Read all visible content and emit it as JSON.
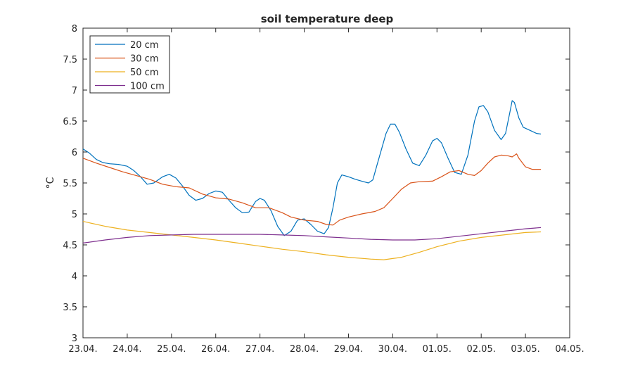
{
  "chart_data": {
    "type": "line",
    "title": "soil temperature deep",
    "xlabel": "",
    "ylabel": "°C",
    "x_ticks": [
      "23.04.",
      "24.04.",
      "25.04.",
      "26.04.",
      "27.04.",
      "28.04.",
      "29.04.",
      "30.04.",
      "01.05.",
      "02.05.",
      "03.05.",
      "04.05."
    ],
    "xlim": [
      0,
      11
    ],
    "ylim": [
      3,
      8
    ],
    "y_ticks": [
      "3",
      "3.5",
      "4",
      "4.5",
      "5",
      "5.5",
      "6",
      "6.5",
      "7",
      "7.5",
      "8"
    ],
    "grid": false,
    "legend_position": "top-left",
    "series": [
      {
        "name": "20 cm",
        "color": "#0072bd",
        "points": [
          [
            0,
            6.05
          ],
          [
            0.15,
            5.98
          ],
          [
            0.3,
            5.88
          ],
          [
            0.45,
            5.83
          ],
          [
            0.6,
            5.81
          ],
          [
            0.8,
            5.8
          ],
          [
            1.0,
            5.77
          ],
          [
            1.15,
            5.7
          ],
          [
            1.3,
            5.6
          ],
          [
            1.45,
            5.48
          ],
          [
            1.6,
            5.5
          ],
          [
            1.8,
            5.6
          ],
          [
            1.95,
            5.64
          ],
          [
            2.1,
            5.58
          ],
          [
            2.25,
            5.45
          ],
          [
            2.4,
            5.3
          ],
          [
            2.55,
            5.22
          ],
          [
            2.7,
            5.25
          ],
          [
            2.85,
            5.33
          ],
          [
            3.0,
            5.37
          ],
          [
            3.15,
            5.35
          ],
          [
            3.3,
            5.22
          ],
          [
            3.45,
            5.1
          ],
          [
            3.6,
            5.02
          ],
          [
            3.75,
            5.03
          ],
          [
            3.9,
            5.2
          ],
          [
            4.0,
            5.25
          ],
          [
            4.1,
            5.22
          ],
          [
            4.25,
            5.05
          ],
          [
            4.4,
            4.8
          ],
          [
            4.55,
            4.65
          ],
          [
            4.7,
            4.72
          ],
          [
            4.85,
            4.9
          ],
          [
            5.0,
            4.92
          ],
          [
            5.15,
            4.83
          ],
          [
            5.3,
            4.72
          ],
          [
            5.45,
            4.68
          ],
          [
            5.55,
            4.78
          ],
          [
            5.65,
            5.1
          ],
          [
            5.75,
            5.5
          ],
          [
            5.85,
            5.63
          ],
          [
            6.0,
            5.6
          ],
          [
            6.15,
            5.56
          ],
          [
            6.3,
            5.53
          ],
          [
            6.45,
            5.5
          ],
          [
            6.55,
            5.55
          ],
          [
            6.65,
            5.8
          ],
          [
            6.75,
            6.05
          ],
          [
            6.85,
            6.3
          ],
          [
            6.95,
            6.45
          ],
          [
            7.05,
            6.45
          ],
          [
            7.15,
            6.32
          ],
          [
            7.3,
            6.05
          ],
          [
            7.45,
            5.82
          ],
          [
            7.6,
            5.78
          ],
          [
            7.75,
            5.95
          ],
          [
            7.9,
            6.18
          ],
          [
            8.0,
            6.22
          ],
          [
            8.1,
            6.15
          ],
          [
            8.25,
            5.9
          ],
          [
            8.4,
            5.67
          ],
          [
            8.55,
            5.64
          ],
          [
            8.7,
            5.95
          ],
          [
            8.85,
            6.5
          ],
          [
            8.95,
            6.73
          ],
          [
            9.05,
            6.75
          ],
          [
            9.15,
            6.65
          ],
          [
            9.3,
            6.35
          ],
          [
            9.45,
            6.2
          ],
          [
            9.55,
            6.3
          ],
          [
            9.65,
            6.65
          ],
          [
            9.7,
            6.83
          ],
          [
            9.75,
            6.8
          ],
          [
            9.85,
            6.55
          ],
          [
            9.95,
            6.4
          ],
          [
            10.1,
            6.35
          ],
          [
            10.25,
            6.3
          ],
          [
            10.35,
            6.29
          ]
        ]
      },
      {
        "name": "30 cm",
        "color": "#d95319",
        "points": [
          [
            0,
            5.9
          ],
          [
            0.3,
            5.82
          ],
          [
            0.6,
            5.75
          ],
          [
            0.9,
            5.68
          ],
          [
            1.2,
            5.62
          ],
          [
            1.5,
            5.56
          ],
          [
            1.8,
            5.48
          ],
          [
            2.1,
            5.44
          ],
          [
            2.4,
            5.42
          ],
          [
            2.7,
            5.32
          ],
          [
            3.0,
            5.26
          ],
          [
            3.3,
            5.24
          ],
          [
            3.6,
            5.18
          ],
          [
            3.9,
            5.1
          ],
          [
            4.2,
            5.1
          ],
          [
            4.5,
            5.02
          ],
          [
            4.7,
            4.95
          ],
          [
            5.0,
            4.9
          ],
          [
            5.3,
            4.88
          ],
          [
            5.5,
            4.83
          ],
          [
            5.65,
            4.82
          ],
          [
            5.8,
            4.9
          ],
          [
            6.0,
            4.95
          ],
          [
            6.3,
            5.0
          ],
          [
            6.6,
            5.04
          ],
          [
            6.8,
            5.1
          ],
          [
            7.0,
            5.25
          ],
          [
            7.2,
            5.4
          ],
          [
            7.4,
            5.5
          ],
          [
            7.6,
            5.52
          ],
          [
            7.9,
            5.53
          ],
          [
            8.1,
            5.6
          ],
          [
            8.3,
            5.68
          ],
          [
            8.5,
            5.7
          ],
          [
            8.7,
            5.64
          ],
          [
            8.85,
            5.62
          ],
          [
            9.0,
            5.7
          ],
          [
            9.15,
            5.82
          ],
          [
            9.3,
            5.92
          ],
          [
            9.45,
            5.95
          ],
          [
            9.6,
            5.94
          ],
          [
            9.7,
            5.92
          ],
          [
            9.8,
            5.97
          ],
          [
            9.85,
            5.9
          ],
          [
            10.0,
            5.76
          ],
          [
            10.15,
            5.72
          ],
          [
            10.35,
            5.72
          ]
        ]
      },
      {
        "name": "50 cm",
        "color": "#edb120",
        "points": [
          [
            0,
            4.88
          ],
          [
            0.5,
            4.8
          ],
          [
            1.0,
            4.74
          ],
          [
            1.5,
            4.7
          ],
          [
            2.0,
            4.66
          ],
          [
            2.5,
            4.62
          ],
          [
            3.0,
            4.58
          ],
          [
            3.5,
            4.53
          ],
          [
            4.0,
            4.48
          ],
          [
            4.5,
            4.43
          ],
          [
            5.0,
            4.39
          ],
          [
            5.5,
            4.34
          ],
          [
            6.0,
            4.3
          ],
          [
            6.5,
            4.27
          ],
          [
            6.8,
            4.26
          ],
          [
            7.2,
            4.3
          ],
          [
            7.6,
            4.38
          ],
          [
            8.0,
            4.47
          ],
          [
            8.5,
            4.56
          ],
          [
            9.0,
            4.62
          ],
          [
            9.5,
            4.66
          ],
          [
            10.0,
            4.7
          ],
          [
            10.35,
            4.71
          ]
        ]
      },
      {
        "name": "100 cm",
        "color": "#7e2f8e",
        "points": [
          [
            0,
            4.53
          ],
          [
            0.5,
            4.58
          ],
          [
            1.0,
            4.62
          ],
          [
            1.5,
            4.65
          ],
          [
            2.0,
            4.66
          ],
          [
            2.5,
            4.67
          ],
          [
            3.0,
            4.67
          ],
          [
            3.5,
            4.67
          ],
          [
            4.0,
            4.67
          ],
          [
            4.5,
            4.66
          ],
          [
            5.0,
            4.65
          ],
          [
            5.5,
            4.63
          ],
          [
            6.0,
            4.61
          ],
          [
            6.5,
            4.59
          ],
          [
            7.0,
            4.58
          ],
          [
            7.5,
            4.58
          ],
          [
            8.0,
            4.6
          ],
          [
            8.5,
            4.64
          ],
          [
            9.0,
            4.68
          ],
          [
            9.5,
            4.72
          ],
          [
            10.0,
            4.76
          ],
          [
            10.35,
            4.78
          ]
        ]
      }
    ]
  }
}
